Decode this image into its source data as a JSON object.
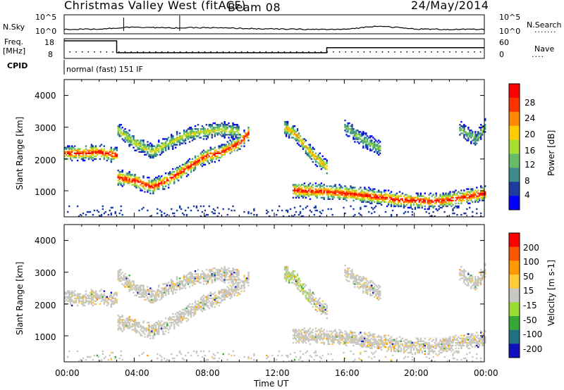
{
  "header": {
    "title": "Christmas Valley West (fitACF)",
    "beam": "Beam 08",
    "date": "24/May/2014"
  },
  "noise_panel": {
    "left_label": "N.Sky",
    "left_ticks": [
      "10^5",
      "10^0"
    ],
    "right_ticks": [
      "10^5",
      "10^0"
    ],
    "right_label": "N.Search"
  },
  "freq_panel": {
    "left_label_1": "Freq.",
    "left_label_2": "[MHz]",
    "left_ticks": [
      "18",
      "8"
    ],
    "right_ticks": [
      "60",
      "0"
    ],
    "right_label": "Nave"
  },
  "cpid": {
    "label": "CPID",
    "mode": "normal (fast) 151 IF"
  },
  "x_axis": {
    "tick_labels": [
      "00:00",
      "04:00",
      "08:00",
      "12:00",
      "16:00",
      "20:00",
      "00:00"
    ],
    "label": "Time UT"
  },
  "power_panel": {
    "ylabel": "Slant Range [km]",
    "yticks": [
      "4000",
      "3000",
      "2000",
      "1000"
    ],
    "colorbar_label": "Power [dB]",
    "colorbar_ticks": [
      "28",
      "24",
      "20",
      "16",
      "12",
      "8",
      "4"
    ],
    "colors": [
      "#0000ff",
      "#1e3ca0",
      "#3c8c8c",
      "#66bb66",
      "#aadd33",
      "#ffcc00",
      "#ff8800",
      "#ff3300",
      "#ff0000"
    ]
  },
  "velocity_panel": {
    "ylabel": "Slant Range [km]",
    "yticks": [
      "4000",
      "3000",
      "2000",
      "1000"
    ],
    "colorbar_label": "Velocity [m s-1]",
    "colorbar_ticks": [
      "200",
      "100",
      "50",
      "15",
      "-15",
      "-50",
      "-100",
      "-200"
    ],
    "colors": [
      "#1010c0",
      "#207080",
      "#33aa33",
      "#99dd33",
      "#c8c8c0",
      "#ffcc33",
      "#ff9900",
      "#ff5500",
      "#ff0000"
    ]
  },
  "chart_data": {
    "type": "heatmap",
    "xlim_hours": [
      0,
      24
    ],
    "ylim_km": [
      180,
      4500
    ],
    "power_bands": [
      {
        "name": "band-a",
        "points": [
          [
            0,
            2150
          ],
          [
            2,
            2200
          ],
          [
            3,
            2100
          ]
        ],
        "value_db": 30
      },
      {
        "name": "band-b",
        "points": [
          [
            3,
            1400
          ],
          [
            4,
            1300
          ],
          [
            5,
            1100
          ],
          [
            6,
            1350
          ],
          [
            7,
            1700
          ],
          [
            8,
            2050
          ],
          [
            9,
            2200
          ],
          [
            10,
            2500
          ],
          [
            10.5,
            2800
          ]
        ],
        "value_db": 30
      },
      {
        "name": "band-c",
        "points": [
          [
            3,
            2900
          ],
          [
            4,
            2500
          ],
          [
            5,
            2200
          ],
          [
            6,
            2500
          ],
          [
            7,
            2750
          ],
          [
            8,
            2850
          ],
          [
            9,
            2900
          ],
          [
            10,
            2850
          ]
        ],
        "value_db": 18
      },
      {
        "name": "band-d",
        "points": [
          [
            12.5,
            3000
          ],
          [
            13.3,
            2700
          ],
          [
            14,
            2200
          ],
          [
            15,
            1700
          ]
        ],
        "value_db": 22
      },
      {
        "name": "band-e",
        "points": [
          [
            13,
            1000
          ],
          [
            15,
            950
          ],
          [
            17,
            850
          ],
          [
            19,
            700
          ],
          [
            21,
            650
          ],
          [
            22,
            700
          ],
          [
            24,
            900
          ]
        ],
        "value_db": 30
      },
      {
        "name": "band-f",
        "points": [
          [
            16,
            3000
          ],
          [
            17,
            2600
          ],
          [
            18,
            2300
          ]
        ],
        "value_db": 14
      },
      {
        "name": "band-g",
        "points": [
          [
            22.5,
            2950
          ],
          [
            23.5,
            2600
          ],
          [
            24,
            3000
          ]
        ],
        "value_db": 14
      }
    ],
    "noise_sky_level": [
      0.5,
      0.6,
      1.2,
      0.9,
      1.0,
      0.8,
      0.6,
      0.5,
      0.5,
      1.5,
      0.6,
      0.5,
      0.5
    ],
    "frequency_mhz": [
      [
        0,
        18
      ],
      [
        3,
        18
      ],
      [
        3,
        10.3
      ],
      [
        15,
        10.3
      ],
      [
        15,
        13.6
      ],
      [
        24,
        13.6
      ]
    ]
  }
}
